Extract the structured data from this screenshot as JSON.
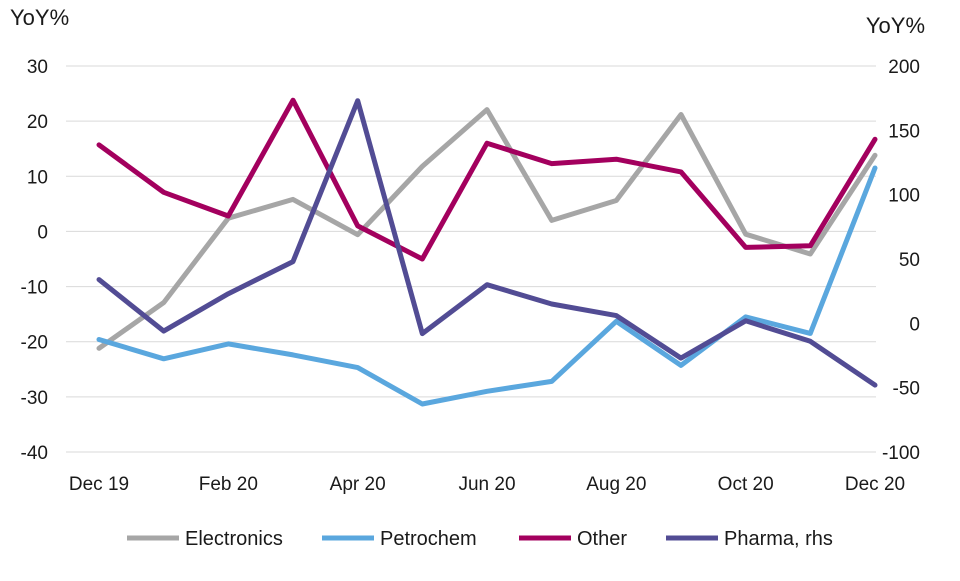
{
  "chart_data": {
    "type": "line",
    "left_axis": {
      "label": "YoY%",
      "ylim": [
        -40,
        30
      ],
      "ticks": [
        30,
        20,
        10,
        0,
        -10,
        -20,
        -30,
        -40
      ]
    },
    "right_axis": {
      "label": "YoY%",
      "ylim": [
        -100,
        200
      ],
      "ticks": [
        200,
        150,
        100,
        50,
        0,
        -50,
        -100
      ]
    },
    "x": [
      "Dec 19",
      "Jan 20",
      "Feb 20",
      "Mar 20",
      "Apr 20",
      "May 20",
      "Jun 20",
      "Jul 20",
      "Aug 20",
      "Sep 20",
      "Oct 20",
      "Nov 20",
      "Dec 20"
    ],
    "x_tick_labels": [
      "Dec 19",
      "Feb 20",
      "Apr 20",
      "Jun 20",
      "Aug 20",
      "Oct 20",
      "Dec 20"
    ],
    "grid": "horizontal",
    "legend_position": "bottom",
    "series": [
      {
        "name": "Electronics",
        "axis": "left",
        "color": "#a6a6a6",
        "values": [
          -21.2,
          -12.9,
          2.4,
          5.8,
          -0.6,
          11.8,
          22.1,
          2.0,
          5.6,
          21.2,
          -0.5,
          -4.1,
          13.8
        ]
      },
      {
        "name": "Petrochem",
        "axis": "left",
        "color": "#5aa7de",
        "values": [
          -19.6,
          -23.1,
          -20.4,
          -22.4,
          -24.7,
          -31.3,
          -29.0,
          -27.2,
          -16.3,
          -24.3,
          -15.5,
          -18.5,
          11.5
        ]
      },
      {
        "name": "Other",
        "axis": "left",
        "color": "#a3005e",
        "values": [
          15.7,
          7.1,
          2.8,
          23.8,
          1.0,
          -5.0,
          16.0,
          12.3,
          13.1,
          10.8,
          -2.9,
          -2.6,
          16.7
        ]
      },
      {
        "name": "Pharma, rhs",
        "axis": "right",
        "color": "#524c94",
        "values": [
          34,
          -6,
          23,
          48,
          173,
          -8,
          30,
          15,
          6,
          -27,
          2,
          -14,
          -48
        ]
      }
    ]
  }
}
